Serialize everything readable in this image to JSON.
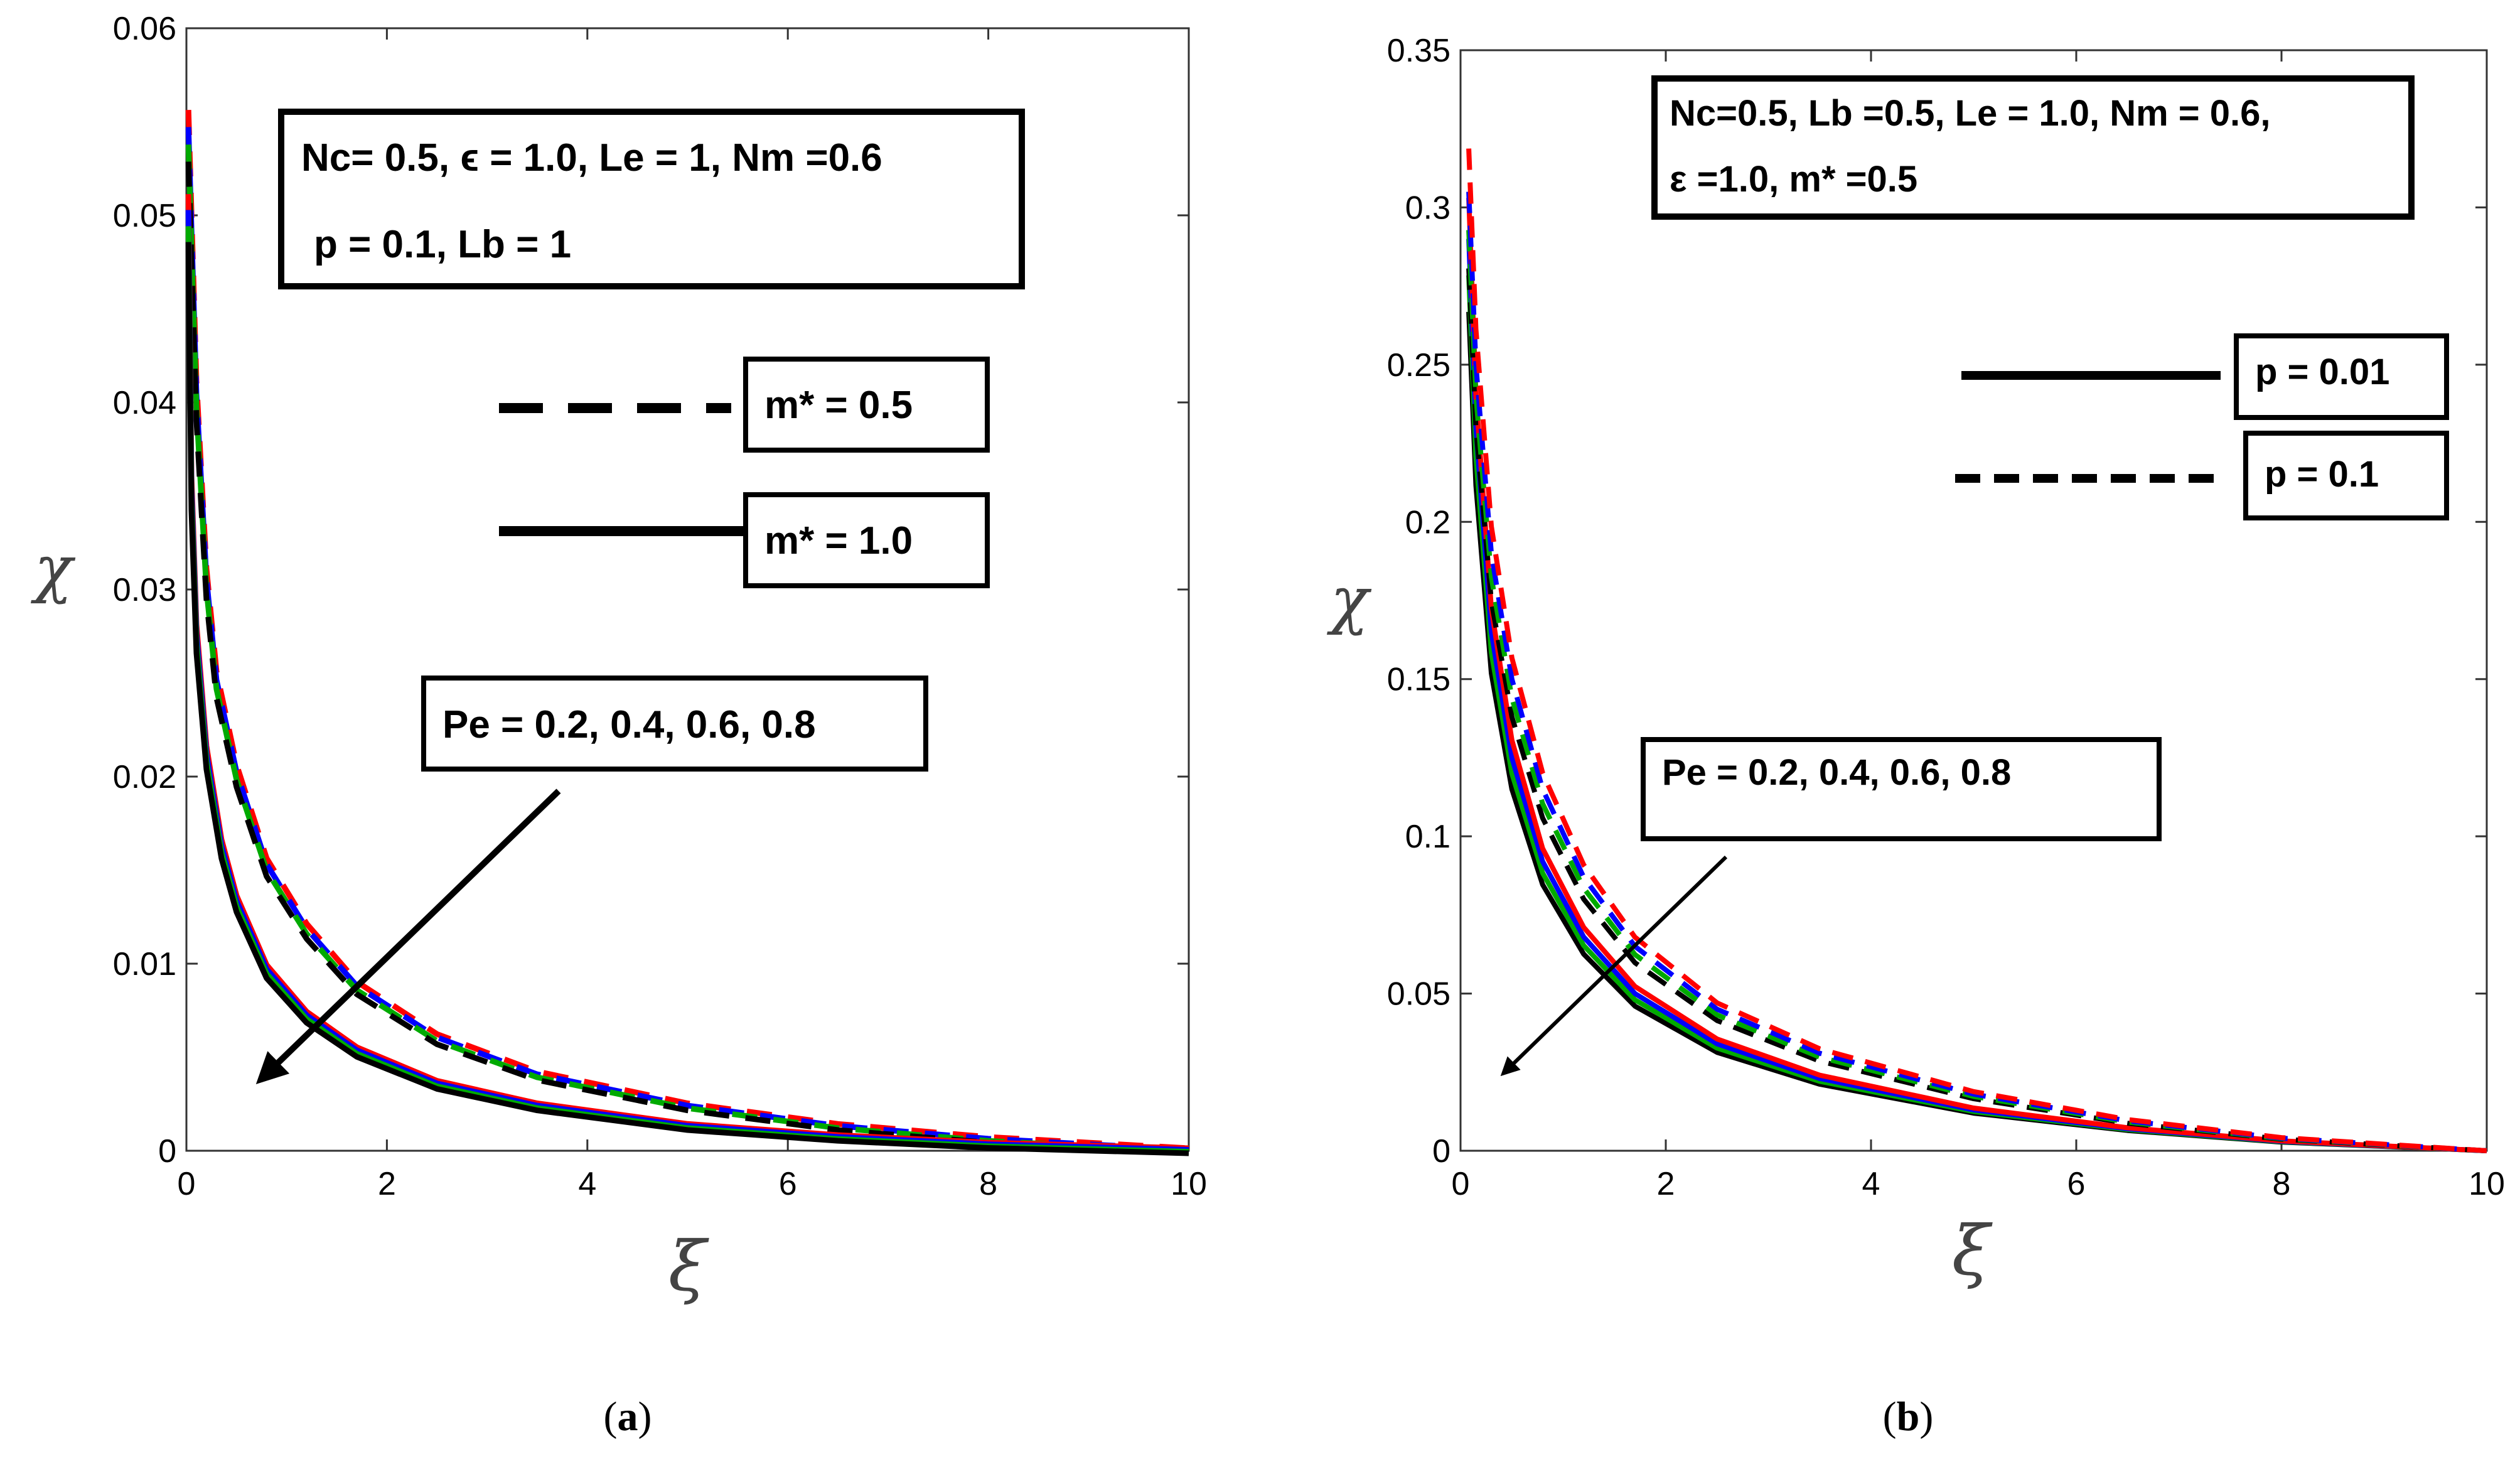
{
  "chart_data": [
    {
      "type": "line",
      "caption_letter": "a",
      "xlabel": "ξ",
      "ylabel": "χ",
      "xlim": [
        0,
        10
      ],
      "ylim": [
        0,
        0.06
      ],
      "xticks": [
        "0",
        "2",
        "4",
        "6",
        "8",
        "10"
      ],
      "yticks": [
        "0",
        "0.01",
        "0.02",
        "0.03",
        "0.04",
        "0.05",
        "0.06"
      ],
      "param_box": {
        "line1": "Nc= 0.5, ϵ = 1.0, Le = 1, Nm =0.6",
        "line2": "p = 0.1, Lb = 1"
      },
      "legend": [
        {
          "label": "m* = 0.5",
          "style": "dashed"
        },
        {
          "label": "m* = 1.0",
          "style": "solid"
        }
      ],
      "annotation": "Pe = 0.2, 0.4, 0.6, 0.8",
      "series": [
        {
          "name": "m* = 0.5",
          "style": "dashed",
          "colors": [
            "#ff0000",
            "#0000ff",
            "#00aa00",
            "#000000"
          ],
          "x": [
            0.02,
            0.1,
            0.2,
            0.3,
            0.5,
            0.8,
            1.2,
            1.7,
            2.5,
            3.5,
            5,
            6.5,
            8,
            9,
            10
          ],
          "y": [
            0.0555,
            0.041,
            0.031,
            0.0255,
            0.0205,
            0.0155,
            0.012,
            0.0089,
            0.0061,
            0.0041,
            0.0024,
            0.0013,
            0.0006,
            0.0003,
            0.0
          ]
        },
        {
          "name": "m* = 1.0",
          "style": "solid",
          "colors": [
            "#ff0000",
            "#0000ff",
            "#00aa00",
            "#000000"
          ],
          "x": [
            0.02,
            0.05,
            0.1,
            0.2,
            0.35,
            0.5,
            0.8,
            1.2,
            1.7,
            2.5,
            3.5,
            5,
            6.5,
            8,
            10
          ],
          "y": [
            0.051,
            0.036,
            0.028,
            0.0215,
            0.0165,
            0.0135,
            0.0098,
            0.0073,
            0.0054,
            0.0036,
            0.0024,
            0.0013,
            0.0007,
            0.0003,
            0.0
          ]
        }
      ]
    },
    {
      "type": "line",
      "caption_letter": "b",
      "xlabel": "ξ",
      "ylabel": "χ",
      "xlim": [
        0,
        10
      ],
      "ylim": [
        0,
        0.35
      ],
      "xticks": [
        "0",
        "2",
        "4",
        "6",
        "8",
        "10"
      ],
      "yticks": [
        "0",
        "0.05",
        "0.1",
        "0.15",
        "0.2",
        "0.25",
        "0.3",
        "0.35"
      ],
      "param_box": {
        "line1": "Nc=0.5, Lb =0.5, Le = 1.0, Nm = 0.6,",
        "line2": "ε =1.0, m* =0.5"
      },
      "legend": [
        {
          "label": "p = 0.01",
          "style": "solid"
        },
        {
          "label": "p = 0.1",
          "style": "dashed"
        }
      ],
      "annotation": "Pe = 0.2, 0.4, 0.6, 0.8",
      "series": [
        {
          "name": "p = 0.01",
          "style": "solid",
          "colors": [
            "#000000",
            "#00aa00",
            "#0000ff",
            "#ff0000"
          ],
          "x": [
            0.08,
            0.15,
            0.3,
            0.5,
            0.8,
            1.2,
            1.7,
            2.5,
            3.5,
            5,
            6.5,
            8,
            10
          ],
          "y": [
            0.29,
            0.23,
            0.165,
            0.125,
            0.092,
            0.068,
            0.05,
            0.034,
            0.023,
            0.013,
            0.007,
            0.003,
            0.0
          ]
        },
        {
          "name": "p = 0.1",
          "style": "dashed",
          "colors": [
            "#000000",
            "#00aa00",
            "#0000ff",
            "#ff0000"
          ],
          "x": [
            0.08,
            0.15,
            0.3,
            0.5,
            0.8,
            1.2,
            1.7,
            2.5,
            3.5,
            5,
            6.5,
            8,
            10
          ],
          "y": [
            0.305,
            0.25,
            0.19,
            0.15,
            0.115,
            0.087,
            0.065,
            0.045,
            0.031,
            0.018,
            0.0095,
            0.004,
            0.0
          ]
        }
      ]
    }
  ]
}
